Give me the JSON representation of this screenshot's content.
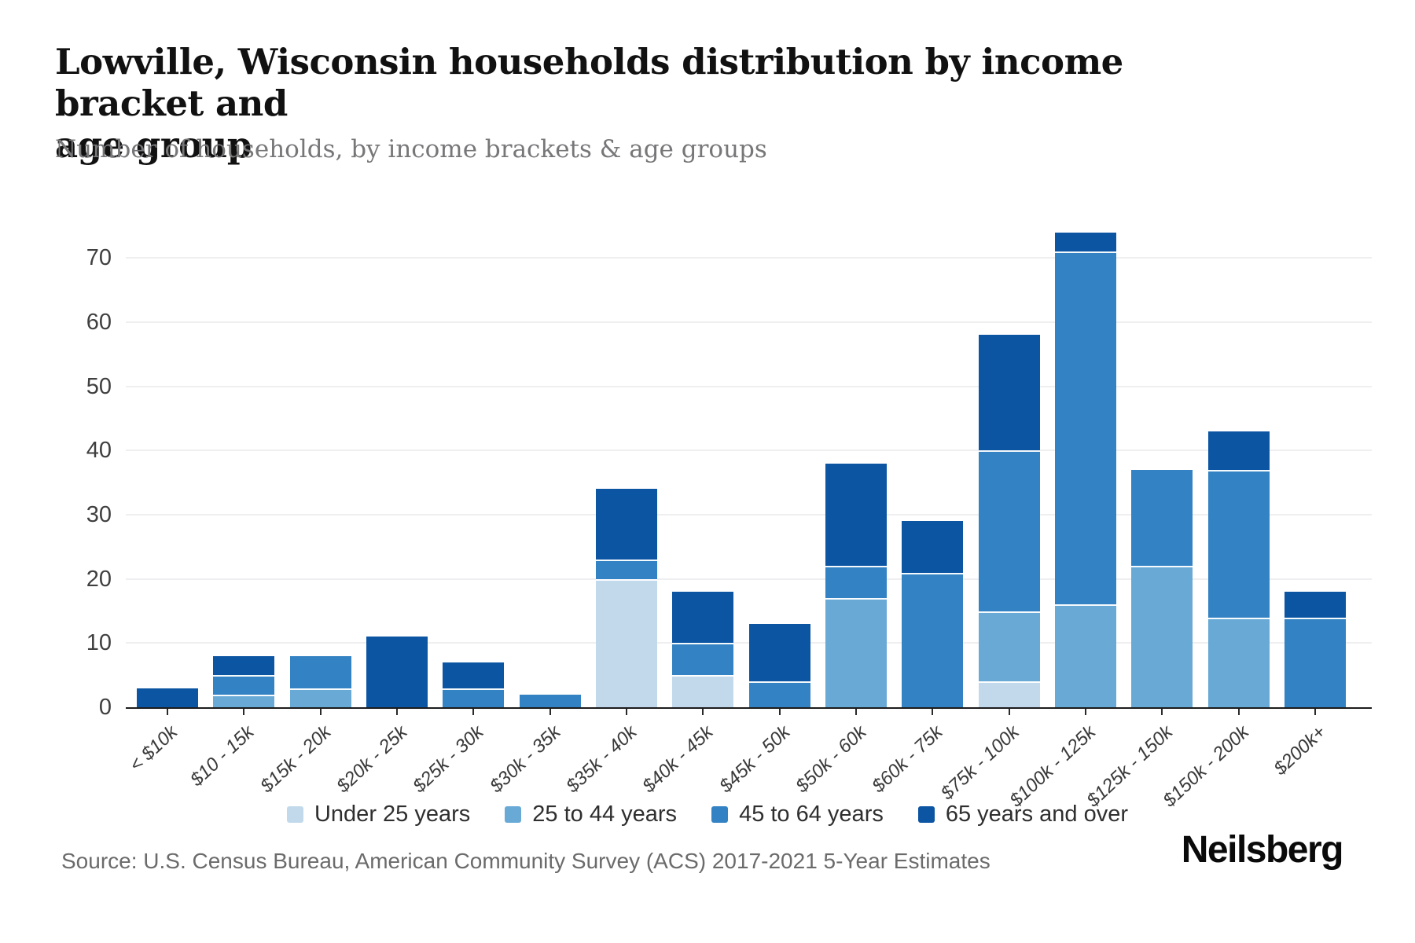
{
  "header": {
    "title_lines": [
      "Lowville, Wisconsin households distribution by income bracket and",
      "age group"
    ],
    "subtitle": "Number of households, by income brackets & age groups"
  },
  "chart_data": {
    "type": "bar",
    "stacked": true,
    "title": "Lowville, Wisconsin households distribution by income bracket and age group",
    "subtitle": "Number of households, by income brackets & age groups",
    "xlabel": "",
    "ylabel": "Number of households",
    "grid": "horizontal",
    "legend_position": "bottom",
    "ylim": [
      0,
      77
    ],
    "yticks": [
      0,
      10,
      20,
      30,
      40,
      50,
      60,
      70
    ],
    "categories": [
      "< $10k",
      "$10 - 15k",
      "$15k - 20k",
      "$20k - 25k",
      "$25k - 30k",
      "$30k - 35k",
      "$35k - 40k",
      "$40k - 45k",
      "$45k - 50k",
      "$50k - 60k",
      "$60k - 75k",
      "$75k - 100k",
      "$100k - 125k",
      "$125k - 150k",
      "$150k - 200k",
      "$200k+"
    ],
    "series": [
      {
        "name": "Under 25 years",
        "color": "#c1d9eb",
        "values": [
          0,
          0,
          0,
          0,
          0,
          0,
          20,
          5,
          0,
          0,
          0,
          4,
          0,
          0,
          0,
          0
        ]
      },
      {
        "name": "25 to 44 years",
        "color": "#68a9d6",
        "values": [
          0,
          2,
          3,
          0,
          0,
          0,
          0,
          0,
          0,
          17,
          0,
          11,
          16,
          22,
          14,
          0
        ]
      },
      {
        "name": "45 to 64 years",
        "color": "#3382c3",
        "values": [
          0,
          3,
          5,
          0,
          3,
          2,
          3,
          5,
          4,
          5,
          21,
          25,
          55,
          15,
          23,
          14
        ]
      },
      {
        "name": "65 years and over",
        "color": "#0c55a3",
        "values": [
          3,
          3,
          0,
          11,
          4,
          0,
          11,
          8,
          9,
          16,
          8,
          18,
          3,
          0,
          6,
          4
        ]
      }
    ],
    "totals": [
      3,
      8,
      8,
      11,
      7,
      2,
      34,
      18,
      13,
      38,
      29,
      58,
      74,
      37,
      43,
      18
    ]
  },
  "footer": {
    "source": "Source: U.S. Census Bureau, American Community Survey (ACS) 2017-2021 5-Year Estimates",
    "logo": "Neilsberg"
  }
}
